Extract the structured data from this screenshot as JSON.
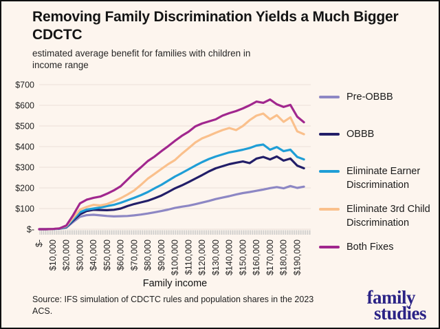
{
  "header": {
    "title": "Removing Family Discrimination Yields a Much Bigger CDCTC",
    "subtitle": "estimated average benefit for families with children in income range"
  },
  "footer": {
    "source": "Source: IFS simulation of CDCTC rules and population shares in the 2023 ACS.",
    "logo_line1": "family",
    "logo_line2": "studies",
    "logo_color": "#2b2386"
  },
  "colors": {
    "background": "#fdf5ee",
    "border": "#101010",
    "gridline": "#eae0d8"
  },
  "chart_data": {
    "type": "line",
    "title": "Removing Family Discrimination Yields a Much Bigger CDCTC",
    "subtitle": "estimated average benefit for families with children in income range",
    "xlabel": "Family income",
    "ylabel": "",
    "xlim": [
      0,
      200000
    ],
    "ylim": [
      0,
      700
    ],
    "x_step": 5000,
    "grid": true,
    "legend_position": "right",
    "x_tick_labels": [
      "$-",
      "$10,000",
      "$20,000",
      "$30,000",
      "$40,000",
      "$50,000",
      "$60,000",
      "$70,000",
      "$80,000",
      "$90,000",
      "$100,000",
      "$110,000",
      "$120,000",
      "$130,000",
      "$140,000",
      "$150,000",
      "$160,000",
      "$170,000",
      "$180,000",
      "$190,000"
    ],
    "y_tick_labels": [
      "$-",
      "$100",
      "$200",
      "$300",
      "$400",
      "$500",
      "$600",
      "$700"
    ],
    "series": [
      {
        "name": "Pre-OBBB",
        "color": "#8d87c4",
        "values": [
          0,
          0,
          1,
          2,
          8,
          35,
          60,
          68,
          70,
          67,
          64,
          62,
          63,
          64,
          67,
          71,
          76,
          82,
          88,
          95,
          103,
          109,
          114,
          121,
          129,
          137,
          146,
          153,
          160,
          168,
          175,
          180,
          186,
          192,
          199,
          204,
          198,
          209,
          200,
          206
        ]
      },
      {
        "name": "OBBB",
        "color": "#221e68",
        "values": [
          0,
          0,
          1,
          3,
          10,
          42,
          72,
          88,
          94,
          93,
          92,
          94,
          100,
          112,
          122,
          130,
          138,
          150,
          163,
          180,
          198,
          212,
          228,
          245,
          262,
          280,
          295,
          305,
          315,
          322,
          328,
          320,
          342,
          350,
          338,
          352,
          332,
          342,
          308,
          295
        ]
      },
      {
        "name": "Eliminate Earner Discrimination",
        "color": "#1f9ed6",
        "values": [
          0,
          0,
          1,
          3,
          12,
          48,
          82,
          95,
          100,
          105,
          112,
          118,
          128,
          140,
          152,
          165,
          180,
          198,
          215,
          235,
          255,
          272,
          290,
          308,
          325,
          340,
          352,
          362,
          372,
          378,
          385,
          393,
          405,
          410,
          385,
          398,
          378,
          385,
          350,
          338
        ]
      },
      {
        "name": "Eliminate 3rd Child Discrimination",
        "color": "#fac08c",
        "values": [
          0,
          0,
          1,
          4,
          15,
          55,
          95,
          108,
          118,
          115,
          122,
          135,
          150,
          168,
          188,
          215,
          245,
          268,
          292,
          315,
          335,
          365,
          392,
          420,
          440,
          453,
          467,
          480,
          490,
          480,
          500,
          528,
          550,
          560,
          532,
          552,
          520,
          542,
          474,
          460
        ]
      },
      {
        "name": "Both Fixes",
        "color": "#a1278e",
        "values": [
          0,
          0,
          1,
          4,
          18,
          68,
          125,
          143,
          152,
          158,
          172,
          188,
          208,
          240,
          272,
          300,
          330,
          352,
          378,
          402,
          428,
          452,
          472,
          498,
          512,
          522,
          532,
          550,
          562,
          572,
          585,
          600,
          618,
          612,
          628,
          605,
          592,
          602,
          545,
          518
        ]
      }
    ]
  }
}
